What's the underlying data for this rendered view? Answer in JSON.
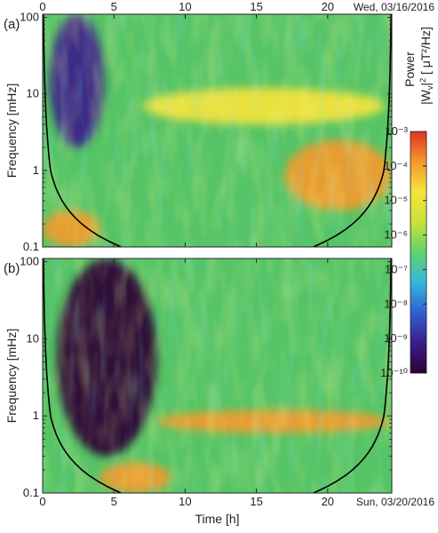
{
  "figure": {
    "colorbar_title_line1": "Power",
    "colorbar_title_line2": "|W",
    "colorbar_title_sub": "v",
    "colorbar_title_line2b": "|",
    "colorbar_title_sup": "2",
    "colorbar_title_unit": " [ μT²/Hz]",
    "colormap": [
      "#2b0033",
      "#3a1f8a",
      "#2f5fd0",
      "#36b7e0",
      "#5fd36a",
      "#c9e23a",
      "#f6e33b",
      "#f39a2c",
      "#e0341f"
    ]
  },
  "chart_data": [
    {
      "type": "heatmap",
      "panel_label": "(a)",
      "date_label": "Wed, 03/16/2016",
      "xlabel": "",
      "ylabel": "Frequency [mHz]",
      "xlim": [
        0,
        24.5
      ],
      "ylim": [
        0.1,
        110
      ],
      "yscale": "log",
      "x_ticks": [
        "0",
        "5",
        "10",
        "15",
        "20"
      ],
      "x_tick_values": [
        0,
        5,
        10,
        15,
        20
      ],
      "y_ticks": [
        "0.1",
        "1",
        "10",
        "100"
      ],
      "y_tick_values": [
        0.1,
        1,
        10,
        100
      ],
      "x_ticks_position": "top",
      "cone_of_influence": "black curve from both edges",
      "features": [
        {
          "name": "low-power gap",
          "x_range": [
            0.5,
            4.3
          ],
          "freq_range": [
            2,
            110
          ],
          "level": "1e-9"
        },
        {
          "name": "enhanced band",
          "x_range": [
            7,
            24
          ],
          "freq_range": [
            4,
            12
          ],
          "level": "1e-5"
        },
        {
          "name": "strong low-frequency power",
          "x_range": [
            0,
            4
          ],
          "freq_range": [
            0.1,
            0.3
          ],
          "level": "1e-4"
        },
        {
          "name": "enhanced patch",
          "x_range": [
            17,
            24.5
          ],
          "freq_range": [
            0.3,
            2.5
          ],
          "level": "1e-4"
        }
      ]
    },
    {
      "type": "heatmap",
      "panel_label": "(b)",
      "date_label": "Sun, 03/20/2016",
      "xlabel": "Time [h]",
      "ylabel": "Frequency [mHz]",
      "xlim": [
        0,
        24.5
      ],
      "ylim": [
        0.1,
        110
      ],
      "yscale": "log",
      "x_ticks": [
        "0",
        "5",
        "10",
        "15",
        "20"
      ],
      "x_tick_values": [
        0,
        5,
        10,
        15,
        20
      ],
      "y_ticks": [
        "0.1",
        "1",
        "10",
        "100"
      ],
      "y_tick_values": [
        0.1,
        1,
        10,
        100
      ],
      "x_ticks_position": "bottom",
      "cone_of_influence": "black curve from both edges",
      "features": [
        {
          "name": "low-power gap",
          "x_range": [
            1,
            8
          ],
          "freq_range": [
            0.3,
            110
          ],
          "level": "1e-10"
        },
        {
          "name": "enhanced band",
          "x_range": [
            8,
            24.5
          ],
          "freq_range": [
            0.6,
            1.2
          ],
          "level": "1e-4"
        },
        {
          "name": "strong low-frequency power",
          "x_range": [
            4,
            9
          ],
          "freq_range": [
            0.1,
            0.25
          ],
          "level": "1e-4"
        }
      ]
    }
  ],
  "colorbar": {
    "scale": "log",
    "ticks": [
      "10⁻³",
      "10⁻⁴",
      "10⁻⁵",
      "10⁻⁶",
      "10⁻⁷",
      "10⁻⁸",
      "10⁻⁹",
      "10⁻¹⁰"
    ],
    "tick_values": [
      0.001,
      0.0001,
      1e-05,
      1e-06,
      1e-07,
      1e-08,
      1e-09,
      1e-10
    ]
  }
}
